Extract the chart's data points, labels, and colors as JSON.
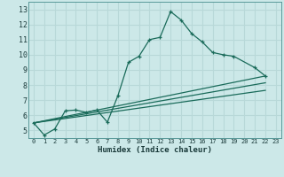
{
  "title": "",
  "xlabel": "Humidex (Indice chaleur)",
  "ylabel": "",
  "background_color": "#cce8e8",
  "grid_color": "#b8d8d8",
  "line_color": "#1a6b5a",
  "xlim": [
    -0.5,
    23.5
  ],
  "ylim": [
    4.5,
    13.5
  ],
  "xticks": [
    0,
    1,
    2,
    3,
    4,
    5,
    6,
    7,
    8,
    9,
    10,
    11,
    12,
    13,
    14,
    15,
    16,
    17,
    18,
    19,
    20,
    21,
    22,
    23
  ],
  "yticks": [
    5,
    6,
    7,
    8,
    9,
    10,
    11,
    12,
    13
  ],
  "main_series": {
    "x": [
      0,
      1,
      2,
      3,
      4,
      5,
      6,
      7,
      8,
      9,
      10,
      11,
      12,
      13,
      14,
      15,
      16,
      17,
      18,
      19,
      21,
      22
    ],
    "y": [
      5.5,
      4.7,
      5.1,
      6.3,
      6.35,
      6.2,
      6.35,
      5.55,
      7.3,
      9.5,
      9.9,
      11.0,
      11.15,
      12.85,
      12.3,
      11.4,
      10.85,
      10.15,
      10.0,
      9.9,
      9.15,
      8.6
    ]
  },
  "straight_lines": [
    {
      "x": [
        0,
        22
      ],
      "y": [
        5.5,
        8.6
      ]
    },
    {
      "x": [
        0,
        22
      ],
      "y": [
        5.5,
        8.15
      ]
    },
    {
      "x": [
        0,
        22
      ],
      "y": [
        5.5,
        7.65
      ]
    }
  ]
}
